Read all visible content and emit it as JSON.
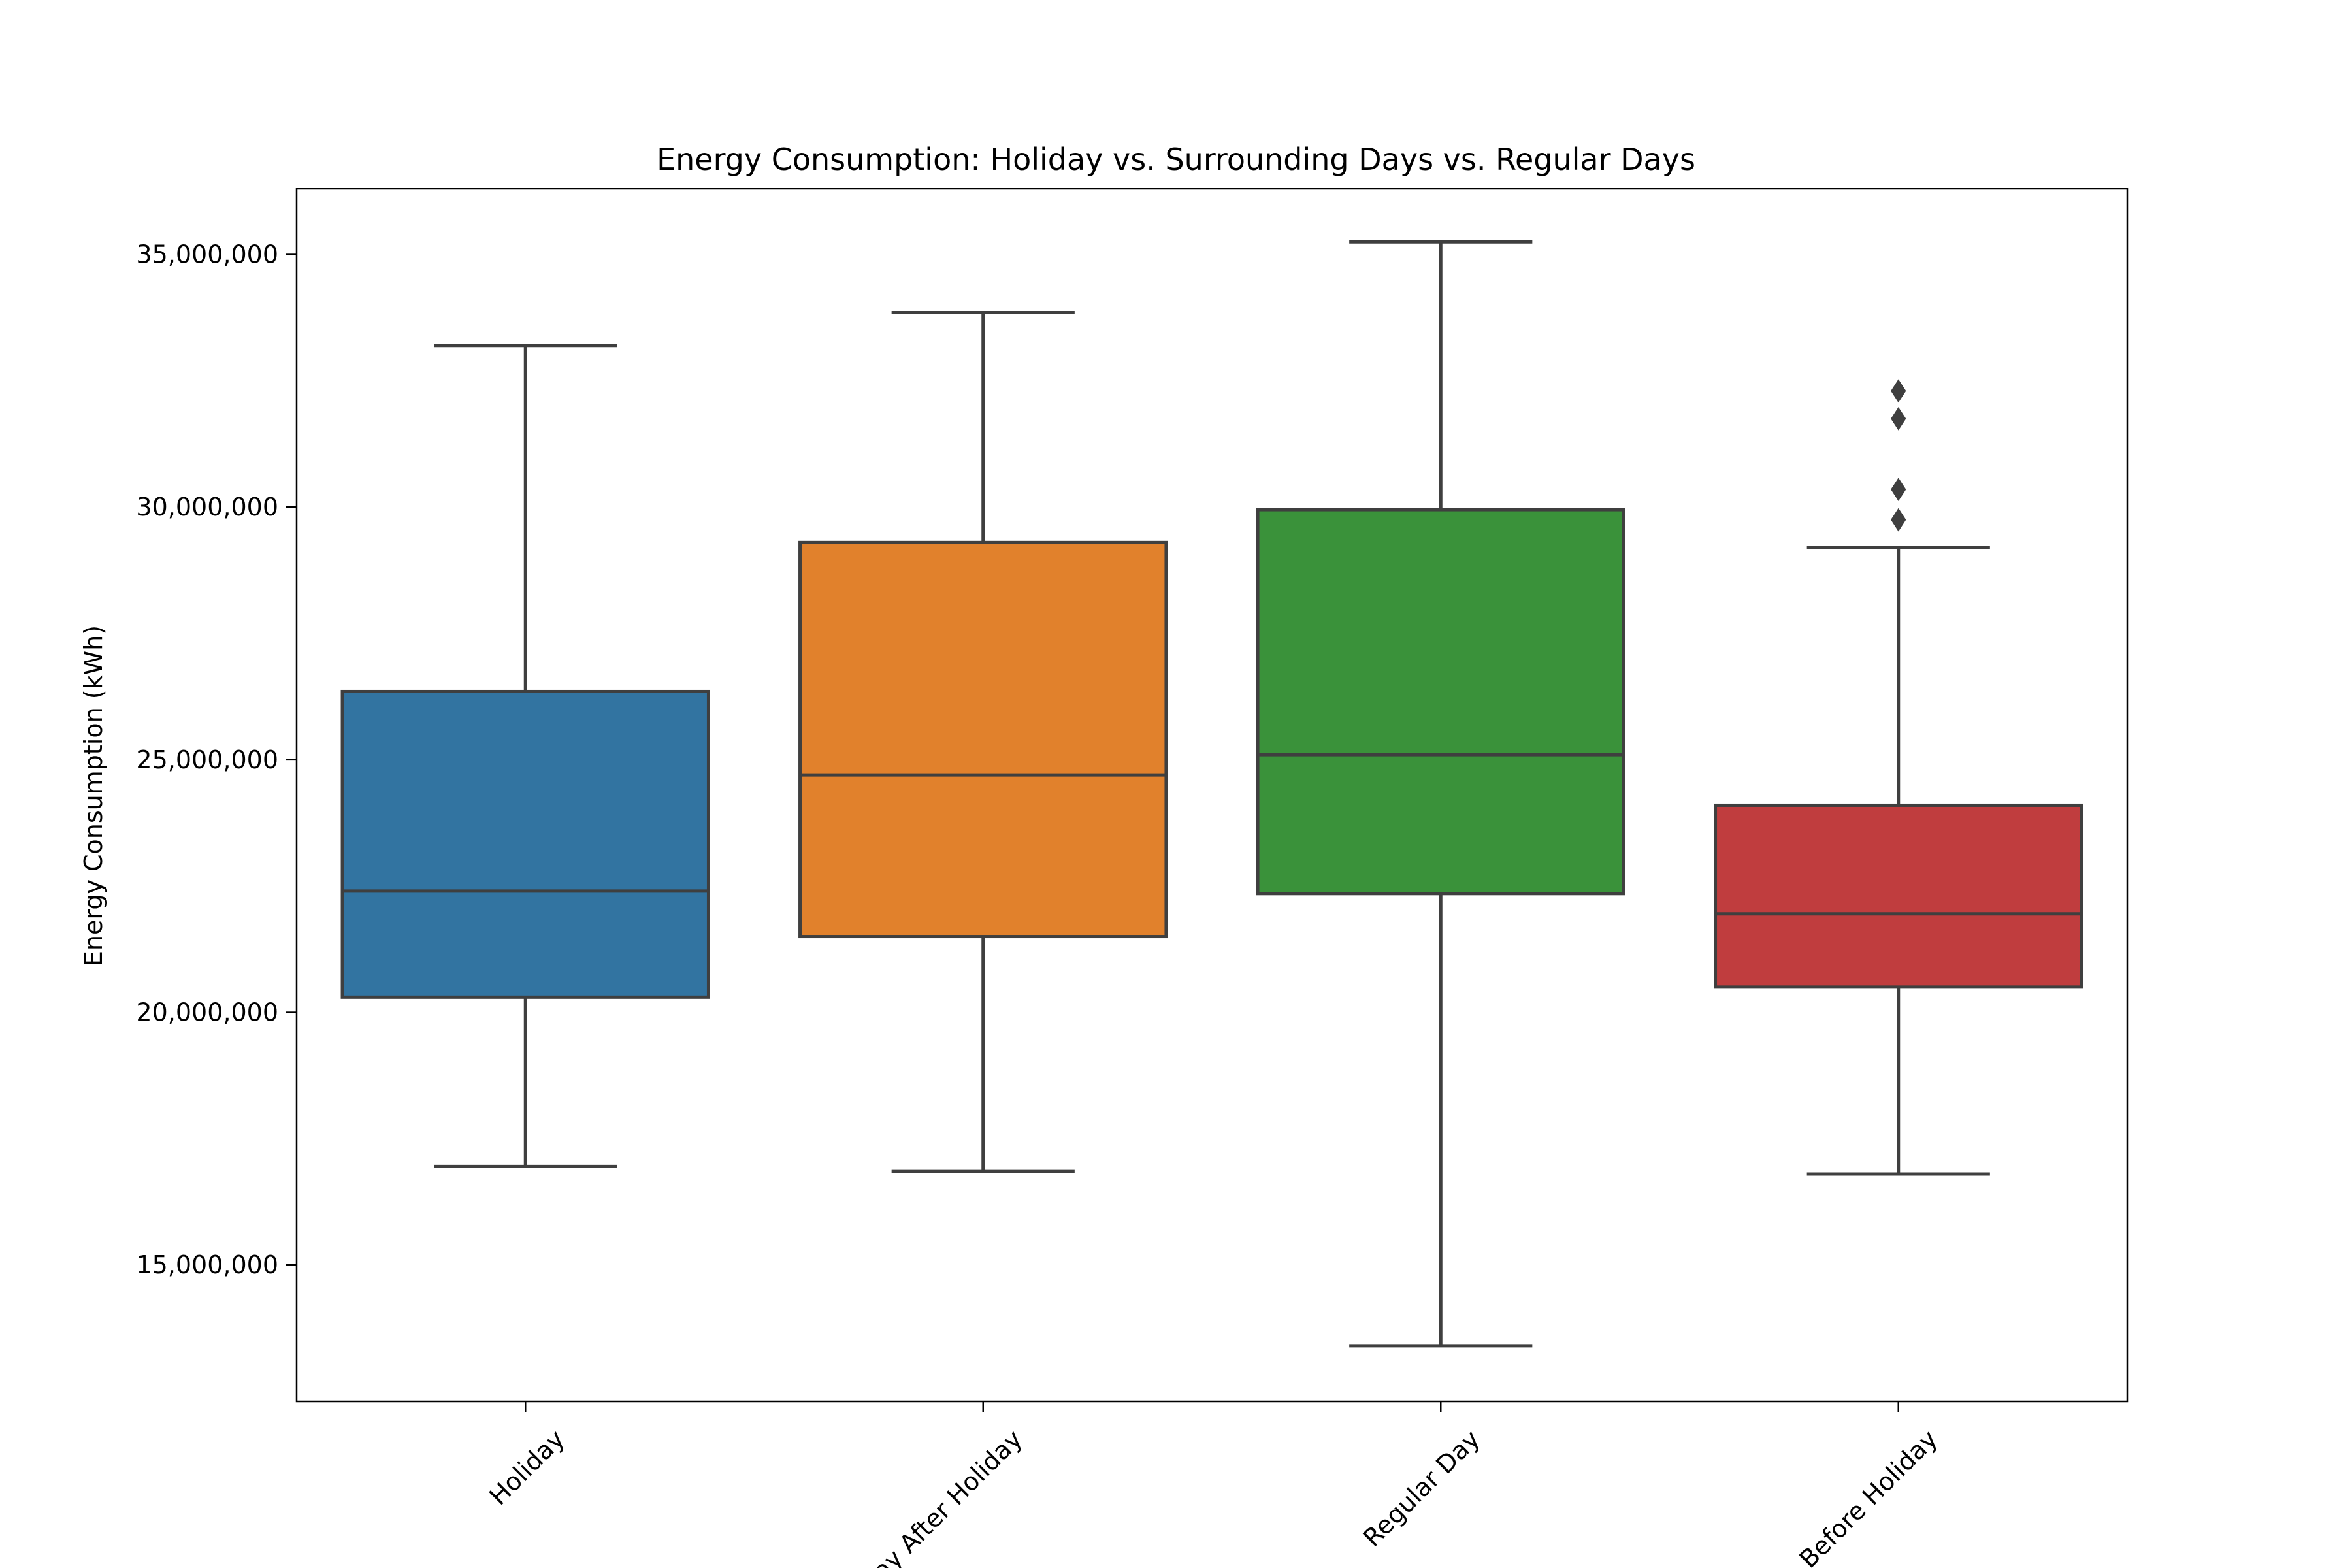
{
  "chart_data": {
    "type": "box",
    "title": "Energy Consumption: Holiday vs. Surrounding Days vs. Regular Days",
    "xlabel": "",
    "ylabel": "Energy Consumption (kWh)",
    "ylim": [
      12300000,
      36300000
    ],
    "y_ticks": [
      15000000,
      20000000,
      25000000,
      30000000,
      35000000
    ],
    "y_tick_labels": [
      "15,000,000",
      "20,000,000",
      "25,000,000",
      "30,000,000",
      "35,000,000"
    ],
    "grid": false,
    "legend": "none",
    "categories": [
      "Holiday",
      "Day After Holiday",
      "Regular Day",
      "Before Holiday"
    ],
    "boxes": [
      {
        "category": "Holiday",
        "color": "#3274a1",
        "whisker_low": 16950000,
        "q1": 20300000,
        "median": 22400000,
        "q3": 26350000,
        "whisker_high": 33200000,
        "outliers": []
      },
      {
        "category": "Day After Holiday",
        "color": "#e1812c",
        "whisker_low": 16850000,
        "q1": 21500000,
        "median": 24700000,
        "q3": 29300000,
        "whisker_high": 33850000,
        "outliers": []
      },
      {
        "category": "Regular Day",
        "color": "#3a923a",
        "whisker_low": 13400000,
        "q1": 22350000,
        "median": 25100000,
        "q3": 29950000,
        "whisker_high": 35250000,
        "outliers": []
      },
      {
        "category": "Before Holiday",
        "color": "#c03d3e",
        "whisker_low": 16800000,
        "q1": 20500000,
        "median": 21950000,
        "q3": 24100000,
        "whisker_high": 29200000,
        "outliers": [
          29750000,
          30350000,
          31750000,
          32300000
        ]
      }
    ]
  }
}
